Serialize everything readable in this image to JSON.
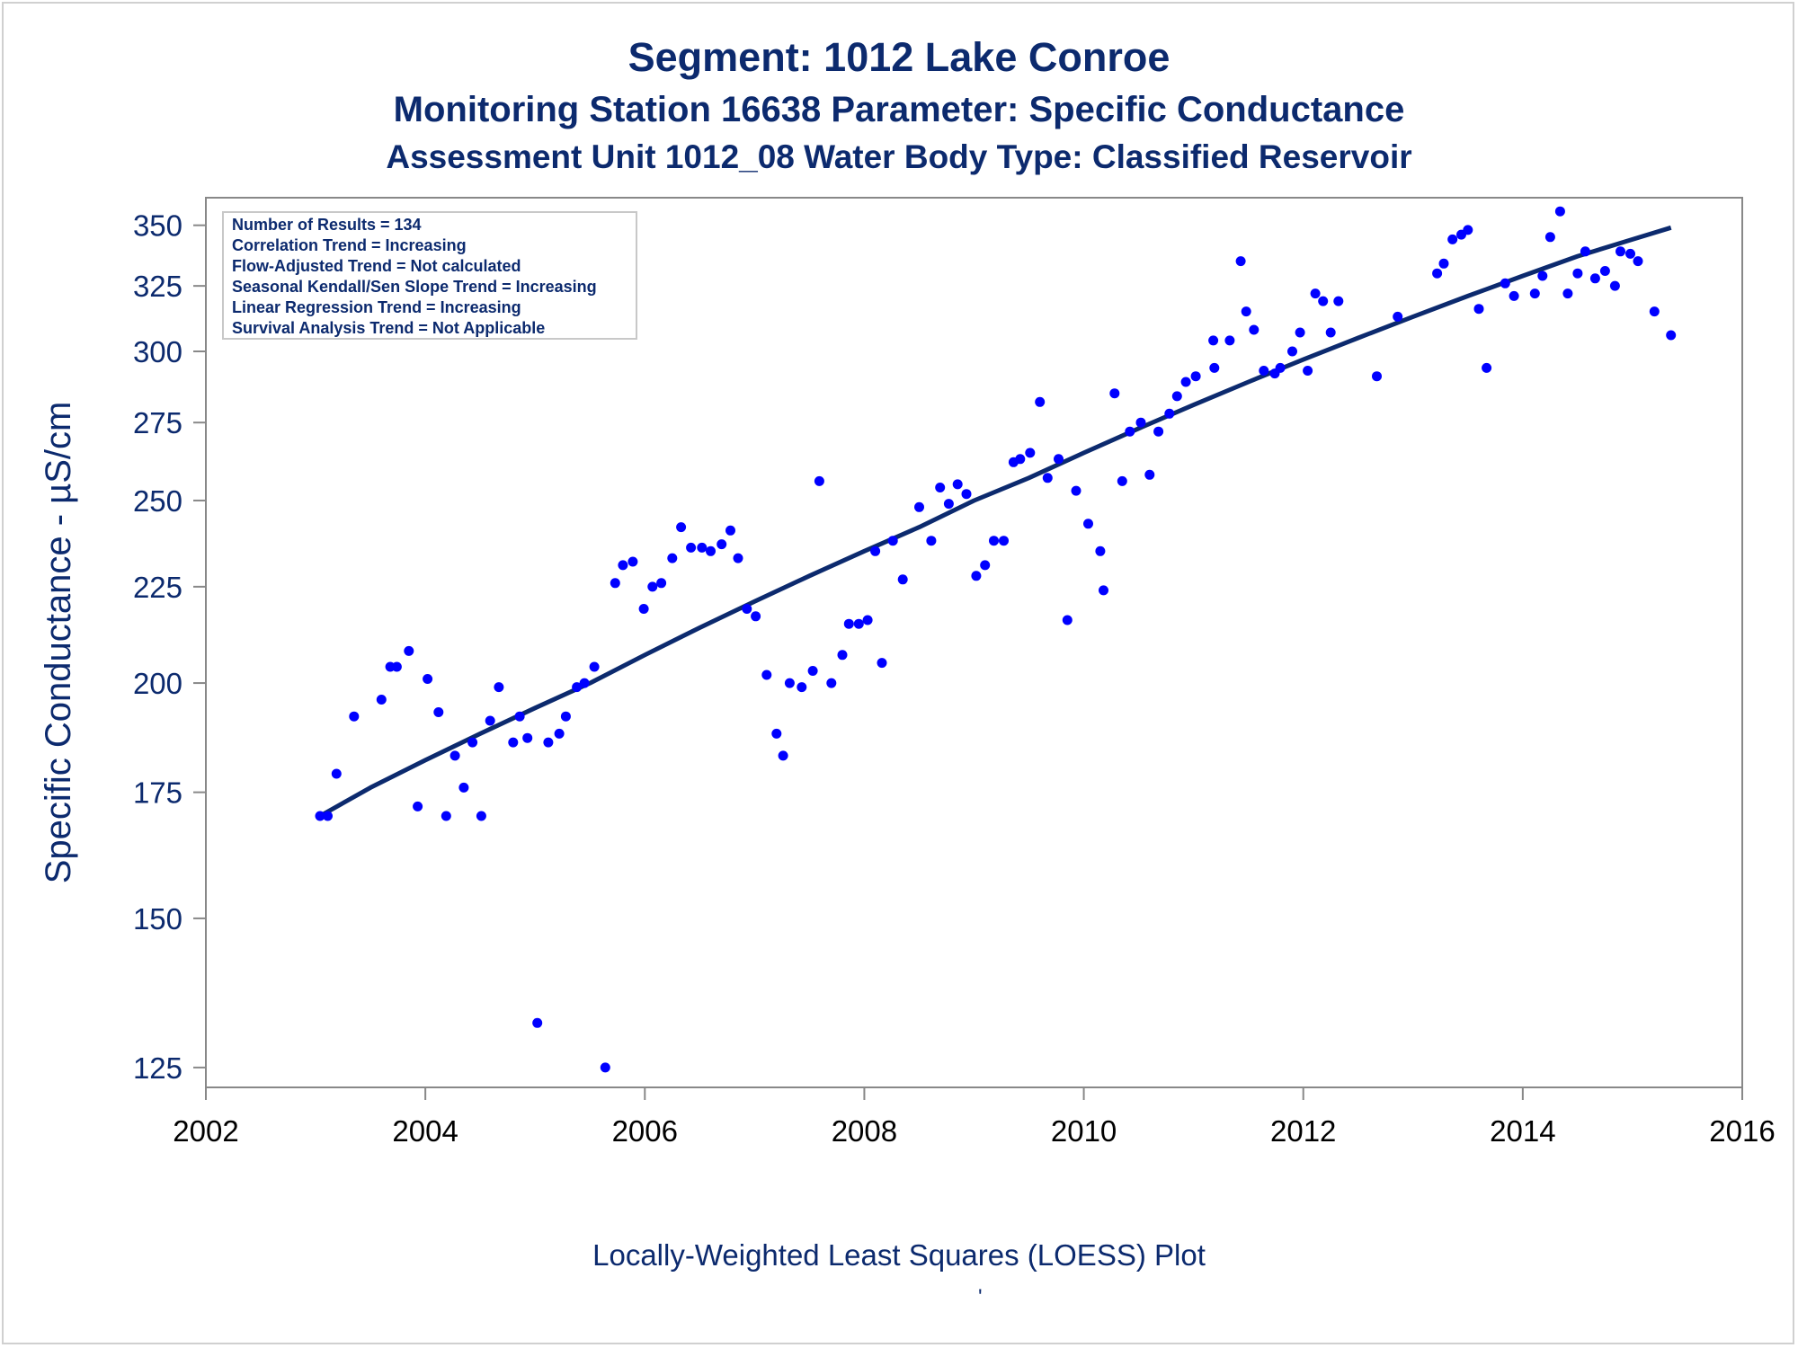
{
  "titles": {
    "line1": "Segment: 1012  Lake Conroe",
    "line2": "Monitoring Station 16638 Parameter: Specific Conductance",
    "line3": "Assessment Unit 1012_08   Water Body Type: Classified Reservoir"
  },
  "footnote": "Locally-Weighted Least Squares (LOESS) Plot",
  "footnote_mark": "'",
  "colors": {
    "text": "#0c2a6e",
    "points": "#0000ff",
    "trend_line": "#0c2a6e",
    "axis": "#888888"
  },
  "chart_data": {
    "type": "scatter",
    "xlabel": "",
    "ylabel": "Specific Conductance -  µS/cm",
    "x_scale": "date",
    "y_scale": "log",
    "xlim": [
      2002,
      2016
    ],
    "ylim": [
      122,
      362
    ],
    "x_ticks": [
      "2002",
      "2004",
      "2006",
      "2008",
      "2010",
      "2012",
      "2014",
      "2016"
    ],
    "y_ticks": [
      125,
      150,
      175,
      200,
      225,
      250,
      275,
      300,
      325,
      350
    ],
    "grid": false,
    "legend": {
      "placement": "top-left",
      "lines": [
        "Number of Results = 134",
        "Correlation Trend = Increasing",
        "Flow-Adjusted Trend = Not calculated",
        "Seasonal Kendall/Sen Slope Trend = Increasing",
        "Linear Regression Trend = Increasing",
        "Survival Analysis Trend = Not Applicable"
      ]
    },
    "series": [
      {
        "type": "scatter",
        "points": [
          [
            2003.04,
            170
          ],
          [
            2003.11,
            170
          ],
          [
            2003.19,
            179
          ],
          [
            2003.35,
            192
          ],
          [
            2003.6,
            196
          ],
          [
            2003.68,
            204
          ],
          [
            2003.74,
            204
          ],
          [
            2003.85,
            208
          ],
          [
            2003.93,
            172
          ],
          [
            2004.02,
            201
          ],
          [
            2004.12,
            193
          ],
          [
            2004.19,
            170
          ],
          [
            2004.27,
            183
          ],
          [
            2004.35,
            176
          ],
          [
            2004.43,
            186
          ],
          [
            2004.51,
            170
          ],
          [
            2004.59,
            191
          ],
          [
            2004.67,
            199
          ],
          [
            2004.8,
            186
          ],
          [
            2004.86,
            192
          ],
          [
            2004.93,
            187
          ],
          [
            2005.02,
            132
          ],
          [
            2005.12,
            186
          ],
          [
            2005.22,
            188
          ],
          [
            2005.28,
            192
          ],
          [
            2005.38,
            199
          ],
          [
            2005.45,
            200
          ],
          [
            2005.54,
            204
          ],
          [
            2005.64,
            125
          ],
          [
            2005.73,
            226
          ],
          [
            2005.8,
            231
          ],
          [
            2005.89,
            232
          ],
          [
            2005.99,
            219
          ],
          [
            2006.07,
            225
          ],
          [
            2006.15,
            226
          ],
          [
            2006.25,
            233
          ],
          [
            2006.33,
            242
          ],
          [
            2006.42,
            236
          ],
          [
            2006.52,
            236
          ],
          [
            2006.6,
            235
          ],
          [
            2006.7,
            237
          ],
          [
            2006.78,
            241
          ],
          [
            2006.85,
            233
          ],
          [
            2006.93,
            219
          ],
          [
            2007.01,
            217
          ],
          [
            2007.11,
            202
          ],
          [
            2007.2,
            188
          ],
          [
            2007.26,
            183
          ],
          [
            2007.32,
            200
          ],
          [
            2007.43,
            199
          ],
          [
            2007.53,
            203
          ],
          [
            2007.59,
            256
          ],
          [
            2007.7,
            200
          ],
          [
            2007.8,
            207
          ],
          [
            2007.86,
            215
          ],
          [
            2007.95,
            215
          ],
          [
            2008.03,
            216
          ],
          [
            2008.1,
            235
          ],
          [
            2008.16,
            205
          ],
          [
            2008.26,
            238
          ],
          [
            2008.35,
            227
          ],
          [
            2008.5,
            248
          ],
          [
            2008.61,
            238
          ],
          [
            2008.69,
            254
          ],
          [
            2008.77,
            249
          ],
          [
            2008.85,
            255
          ],
          [
            2008.93,
            252
          ],
          [
            2009.02,
            228
          ],
          [
            2009.1,
            231
          ],
          [
            2009.18,
            238
          ],
          [
            2009.27,
            238
          ],
          [
            2009.36,
            262
          ],
          [
            2009.42,
            263
          ],
          [
            2009.51,
            265
          ],
          [
            2009.6,
            282
          ],
          [
            2009.67,
            257
          ],
          [
            2009.77,
            263
          ],
          [
            2009.85,
            216
          ],
          [
            2009.93,
            253
          ],
          [
            2010.04,
            243
          ],
          [
            2010.15,
            235
          ],
          [
            2010.18,
            224
          ],
          [
            2010.28,
            285
          ],
          [
            2010.35,
            256
          ],
          [
            2010.42,
            272
          ],
          [
            2010.52,
            275
          ],
          [
            2010.6,
            258
          ],
          [
            2010.68,
            272
          ],
          [
            2010.78,
            278
          ],
          [
            2010.85,
            284
          ],
          [
            2010.93,
            289
          ],
          [
            2011.02,
            291
          ],
          [
            2011.18,
            304
          ],
          [
            2011.19,
            294
          ],
          [
            2011.33,
            304
          ],
          [
            2011.43,
            335
          ],
          [
            2011.48,
            315
          ],
          [
            2011.55,
            308
          ],
          [
            2011.64,
            293
          ],
          [
            2011.74,
            292
          ],
          [
            2011.79,
            294
          ],
          [
            2011.9,
            300
          ],
          [
            2011.97,
            307
          ],
          [
            2012.04,
            293
          ],
          [
            2012.11,
            322
          ],
          [
            2012.18,
            319
          ],
          [
            2012.25,
            307
          ],
          [
            2012.32,
            319
          ],
          [
            2012.67,
            291
          ],
          [
            2012.86,
            313
          ],
          [
            2013.22,
            330
          ],
          [
            2013.28,
            334
          ],
          [
            2013.36,
            344
          ],
          [
            2013.44,
            346
          ],
          [
            2013.5,
            348
          ],
          [
            2013.6,
            316
          ],
          [
            2013.67,
            294
          ],
          [
            2013.84,
            326
          ],
          [
            2013.92,
            321
          ],
          [
            2014.11,
            322
          ],
          [
            2014.18,
            329
          ],
          [
            2014.25,
            345
          ],
          [
            2014.34,
            356
          ],
          [
            2014.41,
            322
          ],
          [
            2014.5,
            330
          ],
          [
            2014.57,
            339
          ],
          [
            2014.66,
            328
          ],
          [
            2014.75,
            331
          ],
          [
            2014.84,
            325
          ],
          [
            2014.89,
            339
          ],
          [
            2014.98,
            338
          ],
          [
            2015.05,
            335
          ],
          [
            2015.2,
            315
          ],
          [
            2015.35,
            306
          ]
        ]
      },
      {
        "type": "line",
        "points": [
          [
            2003.04,
            170
          ],
          [
            2003.5,
            176
          ],
          [
            2004.0,
            182
          ],
          [
            2004.5,
            188
          ],
          [
            2005.0,
            194
          ],
          [
            2005.5,
            200
          ],
          [
            2006.0,
            207
          ],
          [
            2006.5,
            214
          ],
          [
            2007.0,
            221
          ],
          [
            2007.5,
            228
          ],
          [
            2008.0,
            235
          ],
          [
            2008.5,
            242
          ],
          [
            2009.0,
            250
          ],
          [
            2009.5,
            257
          ],
          [
            2010.0,
            265
          ],
          [
            2010.5,
            273
          ],
          [
            2011.0,
            281
          ],
          [
            2011.5,
            289
          ],
          [
            2012.0,
            297
          ],
          [
            2012.5,
            305
          ],
          [
            2013.0,
            313
          ],
          [
            2013.5,
            321
          ],
          [
            2014.0,
            329
          ],
          [
            2014.5,
            337
          ],
          [
            2015.0,
            344
          ],
          [
            2015.35,
            349
          ]
        ]
      }
    ]
  }
}
